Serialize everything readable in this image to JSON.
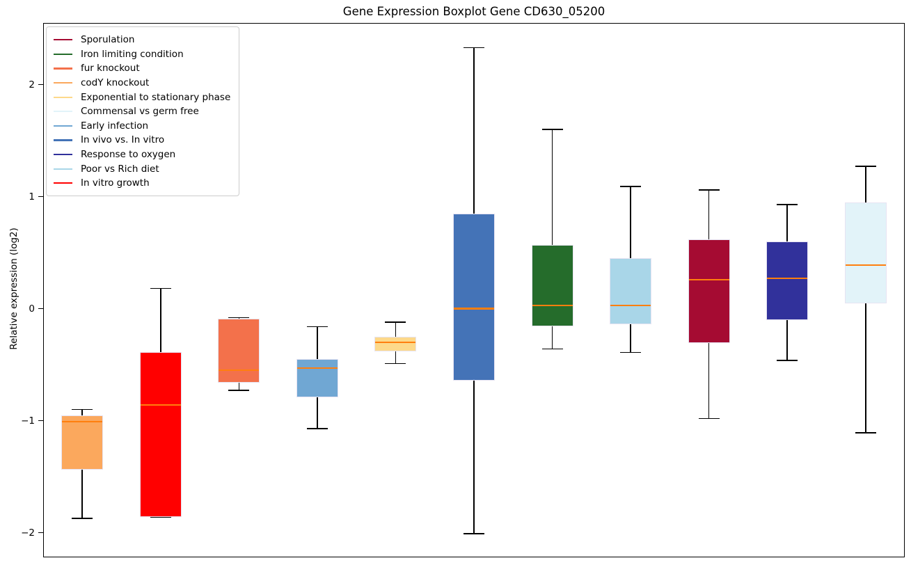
{
  "chart_data": {
    "type": "boxplot",
    "title": "Gene Expression Boxplot Gene CD630_05200",
    "xlabel": "",
    "ylabel": "Relative expression (log2)",
    "ylim": [
      -2.22,
      2.55
    ],
    "yticks": [
      {
        "value": 2,
        "label": "2"
      },
      {
        "value": 1,
        "label": "1"
      },
      {
        "value": 0,
        "label": "0"
      },
      {
        "value": -1,
        "label": "−1"
      },
      {
        "value": -2,
        "label": "−2"
      }
    ],
    "grid": false,
    "legend_position": "upper left",
    "median_color": "#ff7f0e",
    "box_edge_color": "#e6e3f2",
    "whisker_color": "#000000",
    "legend": [
      {
        "label": "Sporulation",
        "color": "#a50b32"
      },
      {
        "label": "Iron limiting condition",
        "color": "#256c2b"
      },
      {
        "label": "fur knockout",
        "color": "#f3714b"
      },
      {
        "label": "codY knockout",
        "color": "#fba85d"
      },
      {
        "label": "Exponential to stationary phase",
        "color": "#fdd98a"
      },
      {
        "label": "Commensal vs germ free",
        "color": "#e2f3f9"
      },
      {
        "label": "Early infection",
        "color": "#70a7d3"
      },
      {
        "label": "In vivo vs. In vitro",
        "color": "#4473b7"
      },
      {
        "label": "Response to oxygen",
        "color": "#31319b"
      },
      {
        "label": "Poor vs Rich diet",
        "color": "#a9d6e8"
      },
      {
        "label": "In vitro growth",
        "color": "#ff0000"
      }
    ],
    "boxes": [
      {
        "label": "codY knockout",
        "color": "#fba85d",
        "whisker_low": -1.87,
        "q1": -1.44,
        "median": -1.01,
        "q3": -0.95,
        "whisker_high": -0.9
      },
      {
        "label": "In vitro growth",
        "color": "#ff0000",
        "whisker_low": -1.86,
        "q1": -1.86,
        "median": -0.86,
        "q3": -0.39,
        "whisker_high": 0.18
      },
      {
        "label": "fur knockout",
        "color": "#f3714b",
        "whisker_low": -0.73,
        "q1": -0.66,
        "median": -0.55,
        "q3": -0.09,
        "whisker_high": -0.08
      },
      {
        "label": "Early infection",
        "color": "#70a7d3",
        "whisker_low": -1.07,
        "q1": -0.79,
        "median": -0.53,
        "q3": -0.45,
        "whisker_high": -0.16
      },
      {
        "label": "Exponential to stationary phase",
        "color": "#fdd98a",
        "whisker_low": -0.49,
        "q1": -0.38,
        "median": -0.3,
        "q3": -0.25,
        "whisker_high": -0.12
      },
      {
        "label": "In vivo vs. In vitro",
        "color": "#4473b7",
        "whisker_low": -2.01,
        "q1": -0.64,
        "median": 0.0,
        "q3": 0.85,
        "whisker_high": 2.33
      },
      {
        "label": "Iron limiting condition",
        "color": "#256c2b",
        "whisker_low": -0.36,
        "q1": -0.16,
        "median": 0.03,
        "q3": 0.57,
        "whisker_high": 1.6
      },
      {
        "label": "Poor vs Rich diet",
        "color": "#a9d6e8",
        "whisker_low": -0.39,
        "q1": -0.14,
        "median": 0.03,
        "q3": 0.45,
        "whisker_high": 1.09
      },
      {
        "label": "Sporulation",
        "color": "#a50b32",
        "whisker_low": -0.98,
        "q1": -0.31,
        "median": 0.26,
        "q3": 0.62,
        "whisker_high": 1.06
      },
      {
        "label": "Response to oxygen",
        "color": "#31319b",
        "whisker_low": -0.46,
        "q1": -0.1,
        "median": 0.27,
        "q3": 0.6,
        "whisker_high": 0.93
      },
      {
        "label": "Commensal vs germ free",
        "color": "#e2f3f9",
        "whisker_low": -1.11,
        "q1": 0.05,
        "median": 0.39,
        "q3": 0.95,
        "whisker_high": 1.27
      }
    ]
  }
}
